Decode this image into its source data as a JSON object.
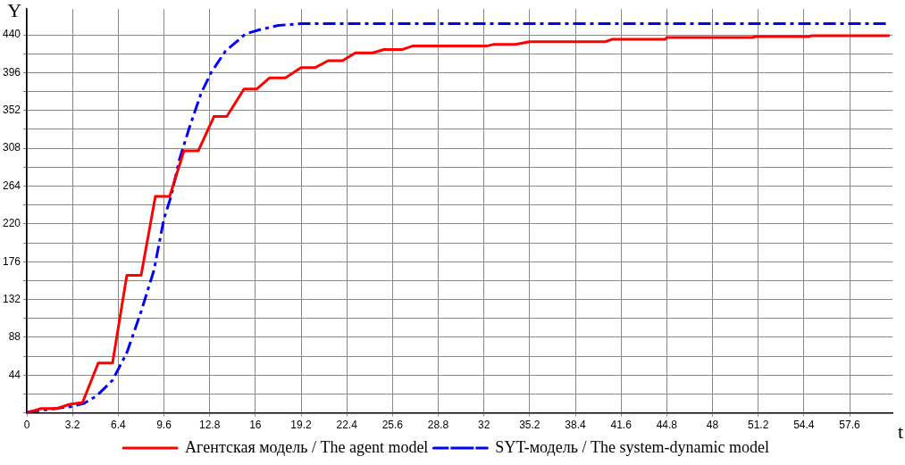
{
  "chart_data": {
    "type": "line",
    "xlabel": "t",
    "ylabel": "Y",
    "xlim": [
      0,
      60.6
    ],
    "xticks": [
      0,
      3.2,
      6.4,
      9.6,
      12.8,
      16,
      19.2,
      22.4,
      25.6,
      28.8,
      32,
      35.2,
      38.4,
      41.6,
      44.8,
      48,
      51.2,
      54.4,
      57.6
    ],
    "ylim": [
      0,
      470
    ],
    "yticks": [
      {
        "value": 0,
        "label": null
      },
      {
        "value": 22,
        "label": null
      },
      44,
      {
        "value": 66,
        "label": null
      },
      88,
      {
        "value": 110,
        "label": null
      },
      132,
      {
        "value": 154,
        "label": null
      },
      176,
      {
        "value": 198,
        "label": null
      },
      220,
      {
        "value": 242,
        "label": null
      },
      264,
      {
        "value": 286,
        "label": null
      },
      308,
      {
        "value": 330,
        "label": null
      },
      352,
      {
        "value": 374,
        "label": null
      },
      396,
      {
        "value": 418,
        "label": null
      },
      440
    ],
    "grid": true,
    "legend": "bottom",
    "marker": "none",
    "series": [
      {
        "name": "Агентская модель / The agent model",
        "color": "#ff0000",
        "line_style": "solid",
        "x": [
          0,
          1.0,
          2.1,
          3.0,
          3.9,
          5.0,
          6.0,
          7.0,
          8.0,
          9.0,
          10.0,
          11.0,
          12.0,
          13.1,
          14.0,
          15.2,
          16.1,
          17.0,
          18.1,
          19.2,
          20.2,
          21.1,
          22.1,
          23.0,
          24.2,
          25.0,
          26.3,
          27.0,
          32.2,
          32.7,
          34.2,
          35.2,
          40.5,
          41.0,
          44.7,
          44.8,
          50.8,
          51.0,
          54.8,
          54.9,
          60.4
        ],
        "values": [
          0,
          5,
          5,
          10,
          12,
          58,
          58,
          160,
          160,
          252,
          252,
          305,
          305,
          345,
          345,
          377,
          377,
          390,
          390,
          402,
          402,
          410,
          410,
          419,
          419,
          423,
          423,
          427,
          427,
          429,
          429,
          432,
          432,
          435,
          435,
          437,
          437,
          438,
          438,
          439,
          439
        ]
      },
      {
        "name": "SYT-модель / The system-dynamic model",
        "color": "#0000ff",
        "line_style": "dashdot",
        "x": [
          0,
          3.0,
          4.0,
          4.9,
          6.0,
          7.0,
          8.0,
          8.9,
          9.6,
          10.1,
          10.7,
          11.4,
          12.2,
          12.9,
          13.9,
          15.3,
          16.3,
          17.6,
          19.2,
          60.4
        ],
        "values": [
          1,
          7,
          11,
          20,
          38,
          70,
          118,
          166,
          226,
          252,
          296,
          333,
          372,
          396,
          421,
          441,
          446,
          451,
          453,
          453
        ]
      }
    ]
  }
}
